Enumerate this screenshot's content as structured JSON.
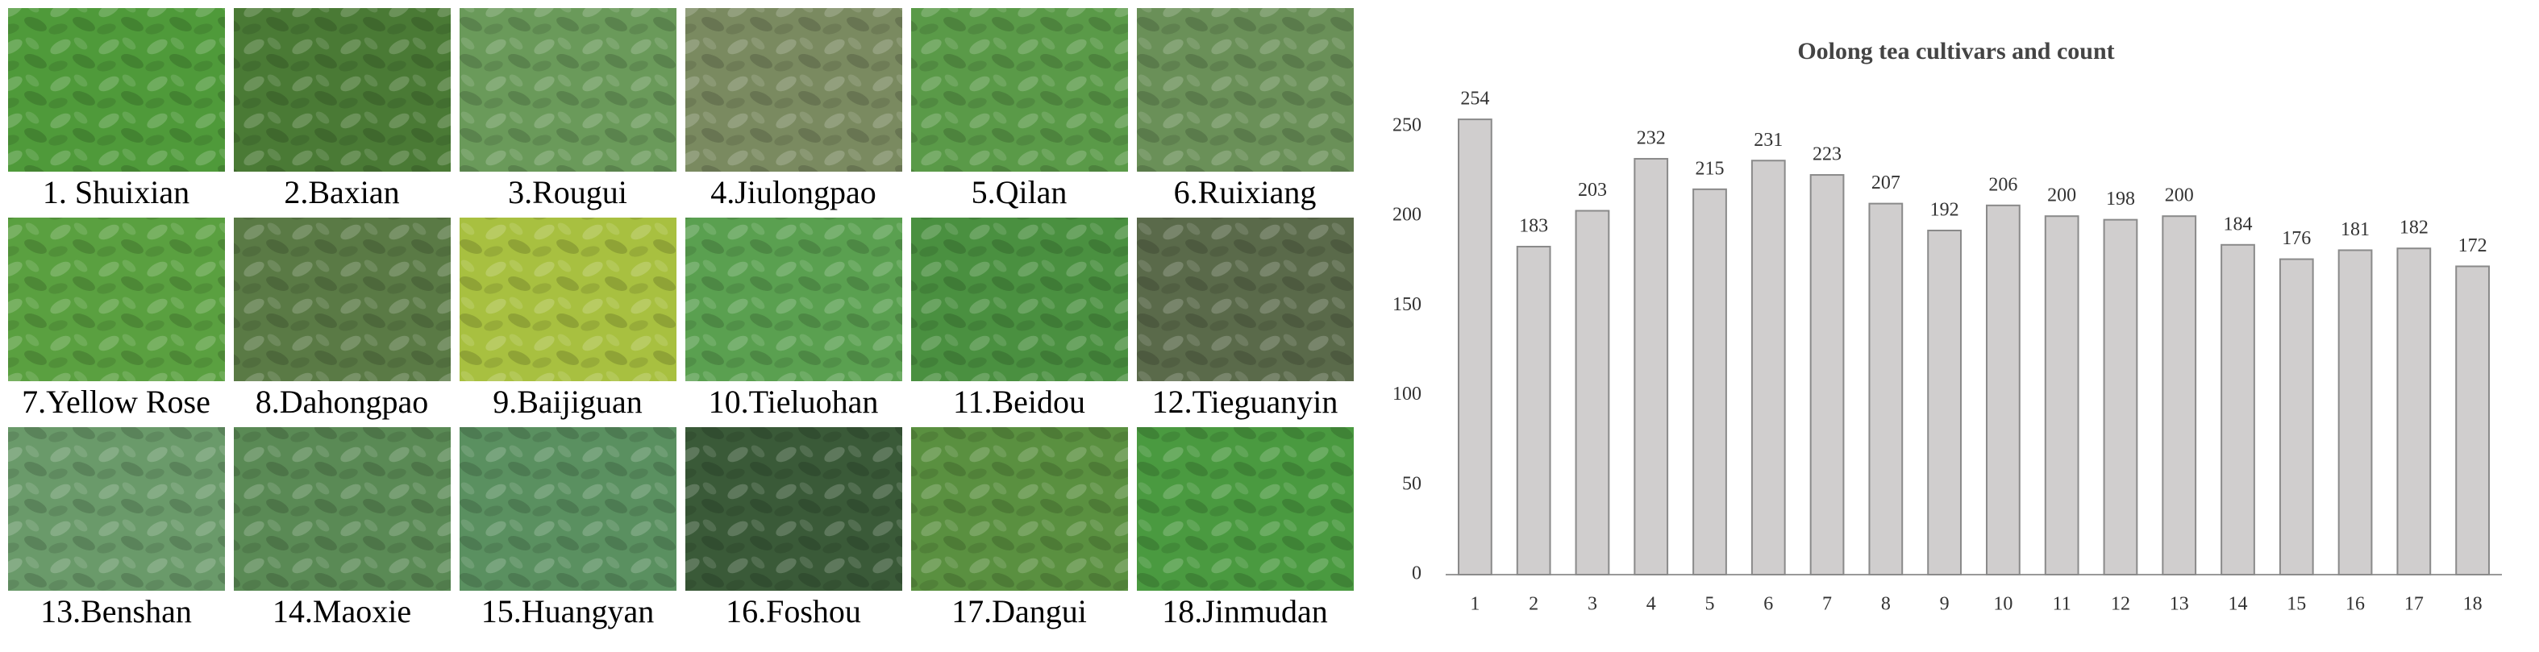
{
  "panels": {
    "captions": [
      "1. Shuixian",
      "2.Baxian",
      "3.Rougui",
      "4.Jiulongpao",
      "5.Qilan",
      "6.Ruixiang",
      "7.Yellow Rose",
      "8.Dahongpao",
      "9.Baijiguan",
      "10.Tieluohan",
      "11.Beidou",
      "12.Tieguanyin",
      "13.Benshan",
      "14.Maoxie",
      "15.Huangyan",
      "16.Foshou",
      "17.Dangui",
      "18.Jinmudan"
    ]
  },
  "chart_data": {
    "type": "bar",
    "title": "Oolong tea cultivars and count",
    "categories": [
      "1",
      "2",
      "3",
      "4",
      "5",
      "6",
      "7",
      "8",
      "9",
      "10",
      "11",
      "12",
      "13",
      "14",
      "15",
      "16",
      "17",
      "18"
    ],
    "values": [
      254,
      183,
      203,
      232,
      215,
      231,
      223,
      207,
      192,
      206,
      200,
      198,
      200,
      184,
      176,
      181,
      182,
      172
    ],
    "color": "#d0cece",
    "ylim": [
      0,
      250
    ],
    "yticks": [
      0,
      50,
      100,
      150,
      200,
      250
    ],
    "grid": false
  }
}
